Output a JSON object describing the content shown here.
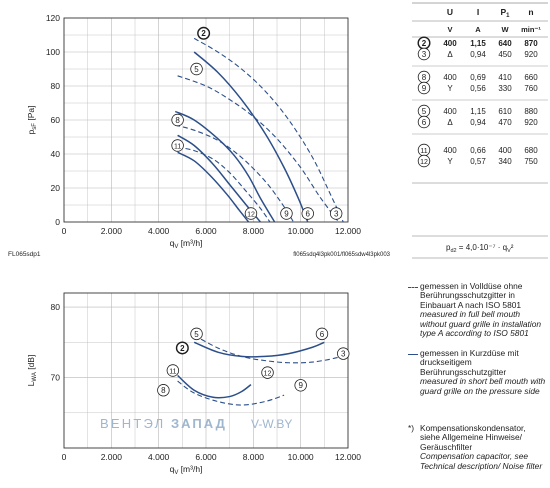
{
  "chart_data": [
    {
      "type": "line",
      "id": "pressure",
      "ylabel": "p_sF [Pa]",
      "xlabel": "q_V [m³/h]",
      "xlim": [
        0,
        12000
      ],
      "ylim": [
        0,
        120
      ],
      "xticks": [
        "0",
        "2.000",
        "4.000",
        "6.000",
        "8.000",
        "10.000",
        "12.000"
      ],
      "yticks": [
        "0",
        "20",
        "40",
        "60",
        "80",
        "100",
        "120"
      ],
      "grid": true,
      "footnote_left": "FL065sdp1",
      "footnote_right": "fl065sdq4l3pk001/fl065sdw4l3pk003",
      "series": [
        {
          "label": "2",
          "style": "dashed",
          "x": [
            5500,
            6500,
            7500,
            8500,
            9500,
            10500,
            11300,
            11800
          ],
          "y": [
            108,
            100,
            90,
            77,
            60,
            38,
            15,
            0
          ]
        },
        {
          "label": "5",
          "style": "solid",
          "x": [
            5500,
            6500,
            7500,
            8500,
            9300,
            9900,
            10300
          ],
          "y": [
            100,
            88,
            72,
            52,
            32,
            14,
            0
          ]
        },
        {
          "label": "3",
          "style": "dashed",
          "x": [
            4800,
            6000,
            7000,
            8000,
            9000,
            10000,
            10800,
            11600
          ],
          "y": [
            86,
            80,
            72,
            62,
            49,
            32,
            15,
            0
          ]
        },
        {
          "label": "8",
          "style": "dashed",
          "x": [
            4700,
            5500,
            6500,
            7500,
            8500,
            9200,
            9700
          ],
          "y": [
            57,
            54,
            48,
            38,
            24,
            11,
            0
          ]
        },
        {
          "label": "6",
          "style": "solid",
          "x": [
            4700,
            5500,
            6500,
            7200,
            7800,
            8300,
            8900
          ],
          "y": [
            65,
            60,
            49,
            39,
            27,
            14,
            0
          ]
        },
        {
          "label": "11",
          "style": "solid",
          "x": [
            4800,
            5500,
            6300,
            7000,
            7700,
            8300
          ],
          "y": [
            51,
            45,
            34,
            22,
            10,
            0
          ]
        },
        {
          "label": "9",
          "style": "dashed",
          "x": [
            4800,
            5500,
            6300,
            7000,
            7700,
            8300,
            8700
          ],
          "y": [
            44,
            42,
            37,
            29,
            18,
            8,
            0
          ]
        },
        {
          "label": "12",
          "style": "solid",
          "x": [
            4800,
            5500,
            6200,
            6900,
            7400,
            7800
          ],
          "y": [
            41,
            36,
            27,
            16,
            7,
            0
          ]
        }
      ],
      "curve_labels": [
        {
          "text": "2",
          "x": 5900,
          "y": 111,
          "bold": true
        },
        {
          "text": "5",
          "x": 5600,
          "y": 90
        },
        {
          "text": "8",
          "x": 4800,
          "y": 60
        },
        {
          "text": "11",
          "x": 4800,
          "y": 45
        },
        {
          "text": "12",
          "x": 7900,
          "y": 5
        },
        {
          "text": "9",
          "x": 9400,
          "y": 5
        },
        {
          "text": "6",
          "x": 10300,
          "y": 5
        },
        {
          "text": "3",
          "x": 11500,
          "y": 5
        }
      ]
    },
    {
      "type": "line",
      "id": "noise",
      "ylabel": "L_WA [dB]",
      "xlabel": "q_V [m³/h]",
      "xlim": [
        0,
        12000
      ],
      "ylim": [
        60,
        82
      ],
      "xticks": [
        "0",
        "2.000",
        "4.000",
        "6.000",
        "8.000",
        "10.000",
        "12.000"
      ],
      "yticks": [
        "",
        "70",
        "80"
      ],
      "grid": true,
      "series": [
        {
          "label": "2",
          "style": "dashed",
          "x": [
            5500,
            6500,
            7500,
            8500,
            9500,
            10500,
            11500,
            12000
          ],
          "y": [
            76,
            74.2,
            73,
            72.4,
            72.1,
            72.2,
            72.8,
            73.5
          ]
        },
        {
          "label": "5",
          "style": "solid",
          "x": [
            5500,
            6500,
            7500,
            8500,
            9500,
            10500,
            11000
          ],
          "y": [
            75,
            73.6,
            73,
            73,
            73.4,
            74.3,
            75
          ]
        },
        {
          "label": "11",
          "style": "solid",
          "x": [
            4800,
            5500,
            6300,
            7000,
            7500,
            7900
          ],
          "y": [
            70.3,
            68.2,
            67.2,
            67.3,
            68,
            69
          ]
        },
        {
          "label": "9",
          "style": "dashed",
          "x": [
            4800,
            5500,
            6500,
            7500,
            8500,
            9300
          ],
          "y": [
            69.5,
            67.8,
            66.6,
            66.1,
            66.6,
            67.5
          ]
        }
      ],
      "curve_labels": [
        {
          "text": "5",
          "x": 5600,
          "y": 76.2
        },
        {
          "text": "2",
          "x": 5000,
          "y": 74.2,
          "bold": true
        },
        {
          "text": "6",
          "x": 10900,
          "y": 76.2
        },
        {
          "text": "3",
          "x": 11800,
          "y": 73.4
        },
        {
          "text": "11",
          "x": 4600,
          "y": 71
        },
        {
          "text": "8",
          "x": 4200,
          "y": 68.2
        },
        {
          "text": "12",
          "x": 8600,
          "y": 70.7
        },
        {
          "text": "9",
          "x": 10000,
          "y": 68.9
        }
      ],
      "watermark": {
        "part1": "ВЕНТЭЛ",
        "part2": "ЗАПАД",
        "part3": "V-W.BY"
      }
    }
  ],
  "table": {
    "headers": [
      "U",
      "I",
      "P1",
      "n"
    ],
    "units": [
      "V",
      "A",
      "W",
      "min⁻¹"
    ],
    "groups": [
      [
        {
          "curve": "2",
          "bold": true,
          "U": "400",
          "conn": "",
          "I": "1,15",
          "P": "640",
          "n": "870"
        },
        {
          "curve": "3",
          "bold": false,
          "U": "",
          "conn": "Δ",
          "I": "0,94",
          "P": "450",
          "n": "920"
        }
      ],
      [
        {
          "curve": "8",
          "bold": false,
          "U": "400",
          "conn": "",
          "I": "0,69",
          "P": "410",
          "n": "660"
        },
        {
          "curve": "9",
          "bold": false,
          "U": "",
          "conn": "Y",
          "I": "0,56",
          "P": "330",
          "n": "760"
        }
      ],
      [
        {
          "curve": "5",
          "bold": false,
          "U": "400",
          "conn": "",
          "I": "1,15",
          "P": "610",
          "n": "880"
        },
        {
          "curve": "6",
          "bold": false,
          "U": "",
          "conn": "Δ",
          "I": "0,94",
          "P": "470",
          "n": "920"
        }
      ],
      [
        {
          "curve": "11",
          "bold": false,
          "U": "400",
          "conn": "",
          "I": "0,66",
          "P": "400",
          "n": "680"
        },
        {
          "curve": "12",
          "bold": false,
          "U": "",
          "conn": "Y",
          "I": "0,57",
          "P": "340",
          "n": "750"
        }
      ]
    ],
    "formula": "p_d2 = 4,0·10⁻⁷ · q_V²"
  },
  "legend": {
    "dashed_de": "gemessen in Volldüse ohne Berührungsschutzgitter in Einbauart A nach ISO 5801",
    "dashed_en": "measured in full bell mouth without guard grille in installation type A according to ISO 5801",
    "solid_de": "gemessen in Kurzdüse mit druckseitigem Berührungsschutzgitter",
    "solid_en": "measured in short bell mouth with guard grille on the pressure side",
    "note_mark": "*)",
    "note_de": "Kompensationskondensator, siehe Allgemeine Hinweise/ Geräuschfilter",
    "note_en": "Compensation capacitor, see Technical description/ Noise filter"
  },
  "colors": {
    "solid": "#2c4f8a",
    "dashed": "#2c4f8a",
    "grid": "#b8b8b8",
    "axis": "#333333",
    "watermark": "#9fb6cf"
  }
}
